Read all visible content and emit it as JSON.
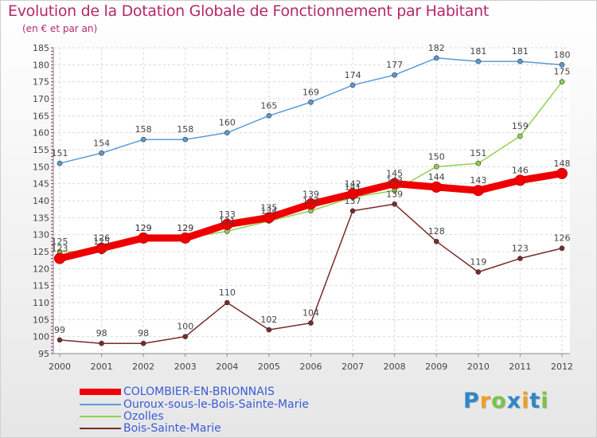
{
  "header": {
    "title": "Evolution de la Dotation Globale de Fonctionnement par Habitant",
    "subtitle": "(en € et par an)"
  },
  "logo": {
    "text": "Proxiti",
    "colors": [
      "#2f86c8",
      "#f0a020",
      "#7cc24a",
      "#2f86c8",
      "#f0a020",
      "#2f86c8",
      "#7cc24a"
    ]
  },
  "chart_data": {
    "type": "line",
    "title": "Evolution de la Dotation Globale de Fonctionnement par Habitant",
    "subtitle": "(en € et par an)",
    "xlabel": "",
    "ylabel": "",
    "ylim": [
      95,
      185
    ],
    "yticks": [
      95,
      100,
      105,
      110,
      115,
      120,
      125,
      130,
      135,
      140,
      145,
      150,
      155,
      160,
      165,
      170,
      175,
      180,
      185
    ],
    "x": [
      "2000",
      "2001",
      "2002",
      "2003",
      "2004",
      "2005",
      "2006",
      "2007",
      "2008",
      "2009",
      "2010",
      "2011",
      "2012"
    ],
    "grid": true,
    "legend_position": "bottom-left",
    "series": [
      {
        "name": "COLOMBIER-EN-BRIONNAIS",
        "color": "#ee0000",
        "values": [
          123,
          126,
          129,
          129,
          133,
          135,
          139,
          142,
          145,
          144,
          143,
          146,
          148
        ]
      },
      {
        "name": "Ouroux-sous-le-Bois-Sainte-Marie",
        "color": "#5b9bd5",
        "values": [
          151,
          154,
          158,
          158,
          160,
          165,
          169,
          174,
          177,
          182,
          181,
          181,
          180
        ]
      },
      {
        "name": "Ozolles",
        "color": "#92d050",
        "values": [
          125,
          125,
          129,
          129,
          131,
          134,
          137,
          141,
          143,
          150,
          151,
          159,
          175
        ]
      },
      {
        "name": "Bois-Sainte-Marie",
        "color": "#7a2a2a",
        "values": [
          99,
          98,
          98,
          100,
          110,
          102,
          104,
          137,
          139,
          128,
          119,
          123,
          126
        ]
      }
    ]
  }
}
